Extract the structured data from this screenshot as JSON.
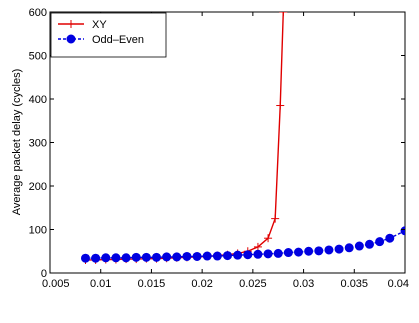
{
  "chart_data": {
    "type": "line",
    "title": "",
    "xlabel": "",
    "ylabel": "Average packet delay (cycles)",
    "xlim": [
      0.005,
      0.04
    ],
    "ylim": [
      0,
      600
    ],
    "x_ticks": [
      "0.005",
      "0.01",
      "0.015",
      "0.02",
      "0.025",
      "0.03",
      "0.035",
      "0.04"
    ],
    "y_ticks": [
      "0",
      "100",
      "200",
      "300",
      "400",
      "500",
      "600"
    ],
    "grid": false,
    "legend_position": "top-left",
    "series": [
      {
        "name": "XY",
        "color": "#e00000",
        "marker": "plus",
        "line_style": "solid",
        "points": [
          [
            0.0085,
            30
          ],
          [
            0.0095,
            30
          ],
          [
            0.0105,
            31
          ],
          [
            0.0115,
            31
          ],
          [
            0.0125,
            32
          ],
          [
            0.0135,
            32
          ],
          [
            0.0145,
            33
          ],
          [
            0.0155,
            33
          ],
          [
            0.0165,
            34
          ],
          [
            0.0175,
            35
          ],
          [
            0.0185,
            36
          ],
          [
            0.0195,
            37
          ],
          [
            0.0205,
            38
          ],
          [
            0.0215,
            40
          ],
          [
            0.0225,
            42
          ],
          [
            0.0235,
            45
          ],
          [
            0.0245,
            50
          ],
          [
            0.0255,
            60
          ],
          [
            0.0265,
            80
          ],
          [
            0.0272,
            125
          ],
          [
            0.0277,
            385
          ],
          [
            0.028,
            600
          ]
        ]
      },
      {
        "name": "Odd–Even",
        "color": "#0000e0",
        "marker": "circle",
        "line_style": "dashed",
        "points": [
          [
            0.0085,
            34
          ],
          [
            0.0095,
            34
          ],
          [
            0.0105,
            35
          ],
          [
            0.0115,
            35
          ],
          [
            0.0125,
            35
          ],
          [
            0.0135,
            36
          ],
          [
            0.0145,
            36
          ],
          [
            0.0155,
            36
          ],
          [
            0.0165,
            37
          ],
          [
            0.0175,
            37
          ],
          [
            0.0185,
            38
          ],
          [
            0.0195,
            38
          ],
          [
            0.0205,
            39
          ],
          [
            0.0215,
            39
          ],
          [
            0.0225,
            40
          ],
          [
            0.0235,
            41
          ],
          [
            0.0245,
            42
          ],
          [
            0.0255,
            43
          ],
          [
            0.0265,
            44
          ],
          [
            0.0275,
            45
          ],
          [
            0.0285,
            47
          ],
          [
            0.0295,
            48
          ],
          [
            0.0305,
            50
          ],
          [
            0.0315,
            51
          ],
          [
            0.0325,
            53
          ],
          [
            0.0335,
            55
          ],
          [
            0.0345,
            58
          ],
          [
            0.0355,
            62
          ],
          [
            0.0365,
            66
          ],
          [
            0.0375,
            72
          ],
          [
            0.0385,
            80
          ],
          [
            0.04,
            97
          ]
        ]
      }
    ]
  }
}
